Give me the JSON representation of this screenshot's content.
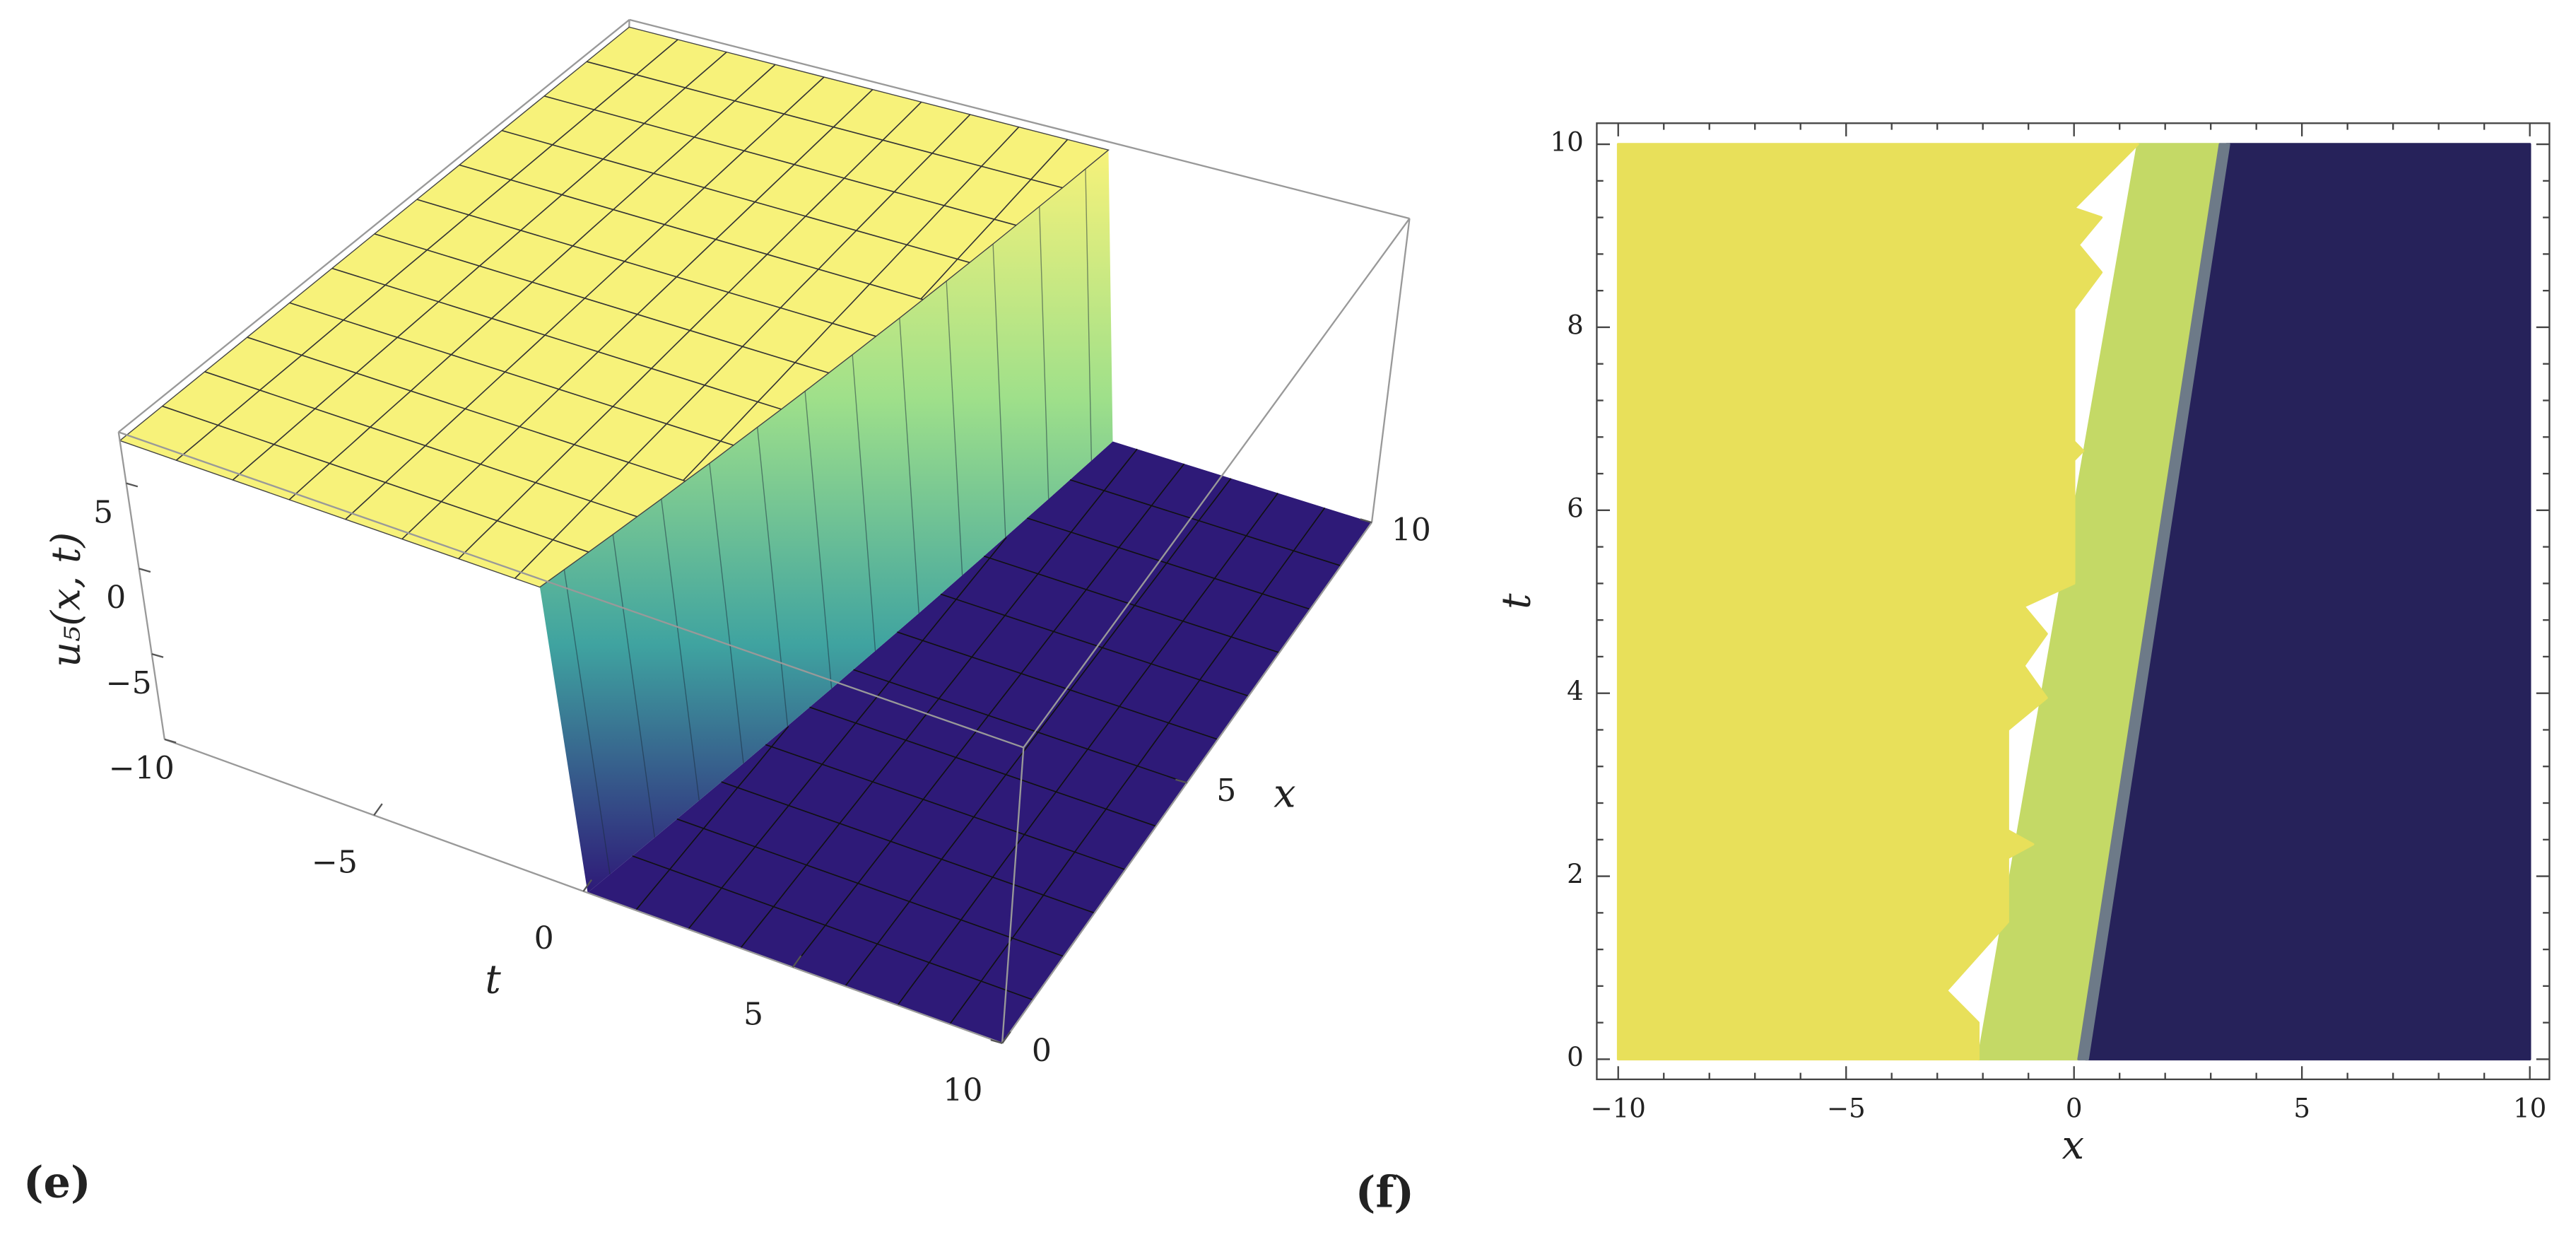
{
  "chart_data": [
    {
      "type": "surface3d",
      "panel": "(e)",
      "xlabel": "x",
      "ylabel": "t",
      "zlabel": "u₅(x, t)",
      "xlim": [
        0,
        10
      ],
      "xticks": [
        0,
        5,
        10
      ],
      "ylim": [
        -10,
        10
      ],
      "yticks": [
        {
          "value": -5,
          "label": "−5"
        },
        0,
        5,
        10
      ],
      "zlim": [
        -10,
        8
      ],
      "zticks": [
        {
          "value": -10,
          "label": "−10"
        },
        {
          "value": -5,
          "label": "−5"
        },
        0,
        5
      ],
      "surface": {
        "high": 7.5,
        "low": -10,
        "edge": {
          "x": [
            0,
            10
          ],
          "t": [
            -0.7,
            2.3
          ]
        },
        "colors": [
          "#f7f27a",
          "#9fe08a",
          "#3fa3a0",
          "#2e1a78"
        ]
      }
    },
    {
      "type": "contour",
      "panel": "(f)",
      "xlabel": "x",
      "ylabel": "t",
      "xlim": [
        -10.47,
        10.43
      ],
      "xticks": [
        {
          "value": -10,
          "label": "−10"
        },
        {
          "value": -5,
          "label": "−5"
        },
        0,
        5,
        10
      ],
      "ylim": [
        -0.22,
        10.23
      ],
      "yticks": [
        0,
        2,
        4,
        6,
        8,
        10
      ],
      "regions": [
        {
          "color": "#c4d966",
          "points": [
            [
              -2.1,
              0
            ],
            [
              0.1,
              0
            ],
            [
              3.2,
              10
            ],
            [
              1.4,
              10
            ]
          ]
        },
        {
          "color": "#26225a",
          "points": [
            [
              0.25,
              0
            ],
            [
              10,
              0
            ],
            [
              10,
              10
            ],
            [
              3.35,
              10
            ]
          ]
        },
        {
          "color": "#6d7a88",
          "points": [
            [
              0.1,
              0
            ],
            [
              0.3,
              0
            ],
            [
              3.4,
              10
            ],
            [
              3.2,
              10
            ]
          ]
        },
        {
          "color": "#e8e05a",
          "points": [
            [
              -10,
              0
            ],
            [
              -2.1,
              0
            ],
            [
              -2.1,
              0.4
            ],
            [
              -2.8,
              0.75
            ],
            [
              -1.45,
              1.5
            ],
            [
              -1.45,
              2.2
            ],
            [
              -0.9,
              2.35
            ],
            [
              -1.45,
              2.5
            ],
            [
              -1.45,
              3.6
            ],
            [
              -0.6,
              3.95
            ],
            [
              -1.1,
              4.3
            ],
            [
              -0.6,
              4.65
            ],
            [
              -1.1,
              4.95
            ],
            [
              0,
              5.2
            ],
            [
              0,
              6.55
            ],
            [
              0.2,
              6.65
            ],
            [
              0,
              6.75
            ],
            [
              0,
              8.2
            ],
            [
              0.6,
              8.6
            ],
            [
              0.1,
              8.9
            ],
            [
              0.6,
              9.2
            ],
            [
              0,
              9.3
            ],
            [
              1.4,
              10
            ],
            [
              -10,
              10
            ]
          ]
        }
      ]
    }
  ]
}
